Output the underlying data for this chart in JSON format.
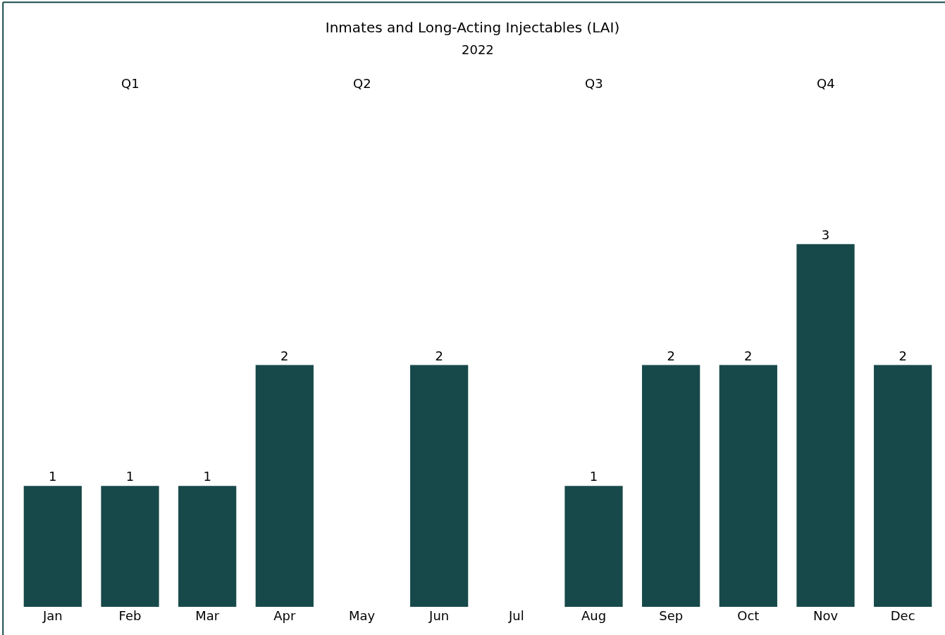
{
  "chart_data": {
    "type": "bar",
    "title": "Inmates and Long-Acting Injectables (LAI)",
    "subtitle": "2022",
    "categories": [
      "Jan",
      "Feb",
      "Mar",
      "Apr",
      "May",
      "Jun",
      "Jul",
      "Aug",
      "Sep",
      "Oct",
      "Nov",
      "Dec"
    ],
    "values": [
      1,
      1,
      1,
      2,
      null,
      2,
      null,
      1,
      2,
      2,
      3,
      2
    ],
    "color": "#17494a",
    "data_labels": true,
    "annotations": [
      "Q1",
      "Q2",
      "Q3",
      "Q4"
    ]
  }
}
